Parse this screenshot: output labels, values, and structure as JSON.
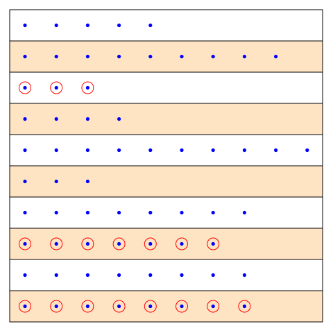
{
  "colors": {
    "background": "#ffffff",
    "row_even": "#ffffff",
    "row_odd": "#ffe4c4",
    "border": "#000000",
    "dot": "#0000ff",
    "ring": "#ff0000"
  },
  "rows": [
    {
      "dots": 5,
      "circled": false
    },
    {
      "dots": 9,
      "circled": false
    },
    {
      "dots": 3,
      "circled": true
    },
    {
      "dots": 4,
      "circled": false
    },
    {
      "dots": 10,
      "circled": false
    },
    {
      "dots": 3,
      "circled": false
    },
    {
      "dots": 8,
      "circled": false
    },
    {
      "dots": 7,
      "circled": true
    },
    {
      "dots": 8,
      "circled": false
    },
    {
      "dots": 8,
      "circled": true
    }
  ]
}
